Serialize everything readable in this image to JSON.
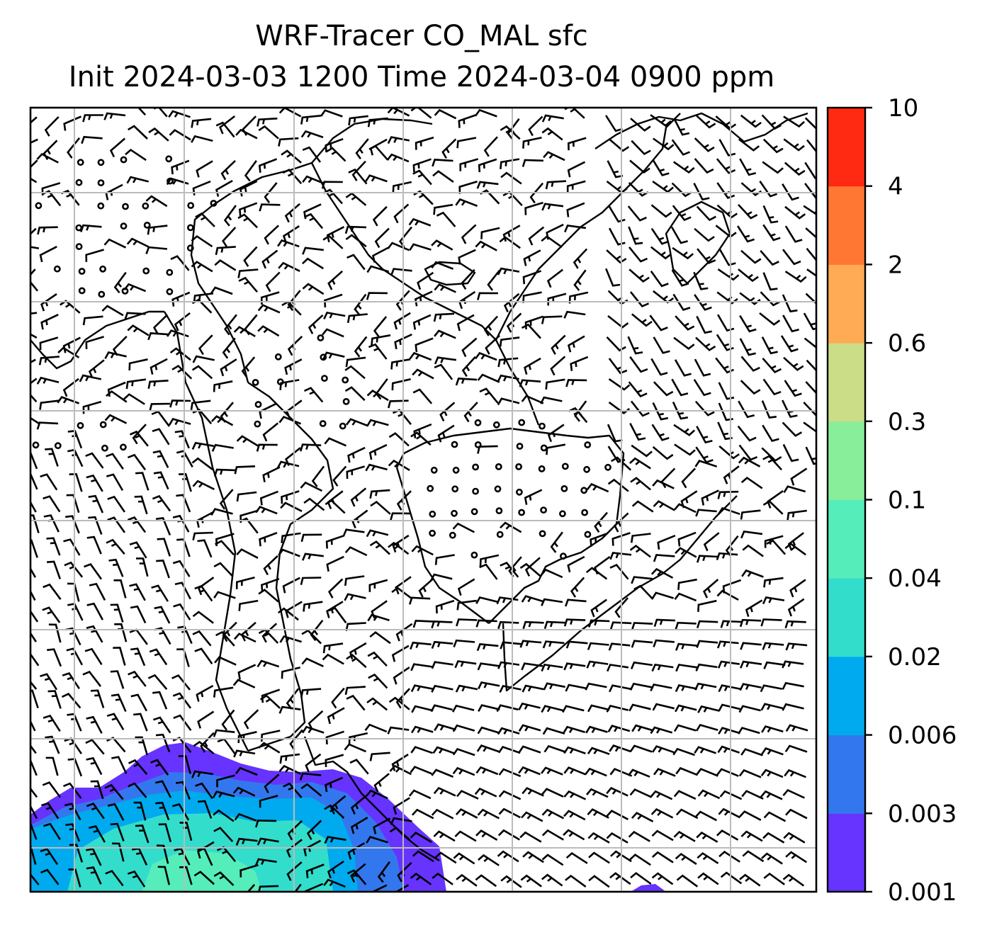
{
  "title": {
    "line1": "WRF-Tracer CO_MAL sfc",
    "line2": "Init 2024-03-03 1200 Time 2024-03-04 0900 ppm"
  },
  "colorbar": {
    "levels": [
      "0.001",
      "0.003",
      "0.006",
      "0.02",
      "0.04",
      "0.1",
      "0.3",
      "0.6",
      "2",
      "4",
      "10"
    ],
    "colors": [
      "#6633ff",
      "#3377ee",
      "#00aaee",
      "#33ddcc",
      "#55eebb",
      "#88ee99",
      "#ccdd88",
      "#ffaa55",
      "#ff7733",
      "#ff2a11"
    ]
  },
  "map": {
    "gridline_color": "#bbbbbb",
    "coastline_color": "#000000"
  }
}
